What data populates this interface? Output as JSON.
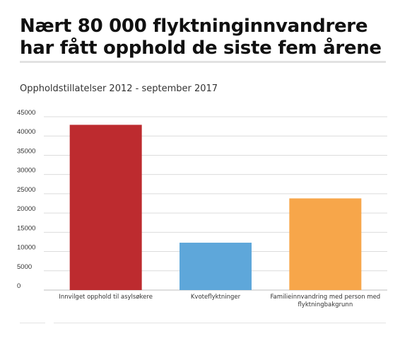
{
  "headline": "Nært 80 000 flyktninginnvandrere har fått opphold de siste fem årene",
  "chart_data": {
    "type": "bar",
    "title": "Oppholdstillatelser 2012 - september 2017",
    "xlabel": "",
    "ylabel": "",
    "ylim": [
      0,
      45000
    ],
    "yticks": [
      0,
      5000,
      10000,
      15000,
      20000,
      25000,
      30000,
      35000,
      40000,
      45000
    ],
    "grid": true,
    "legend": "none",
    "categories": [
      [
        "Innvilget opphold til asylsøkere"
      ],
      [
        "Kvoteflyktninger"
      ],
      [
        "Familieinnvandring med person med",
        "flyktningbakgrunn"
      ]
    ],
    "values": [
      42900,
      12300,
      23800
    ],
    "colors": [
      "#bd2b2f",
      "#5ea7da",
      "#f7a64a"
    ]
  }
}
